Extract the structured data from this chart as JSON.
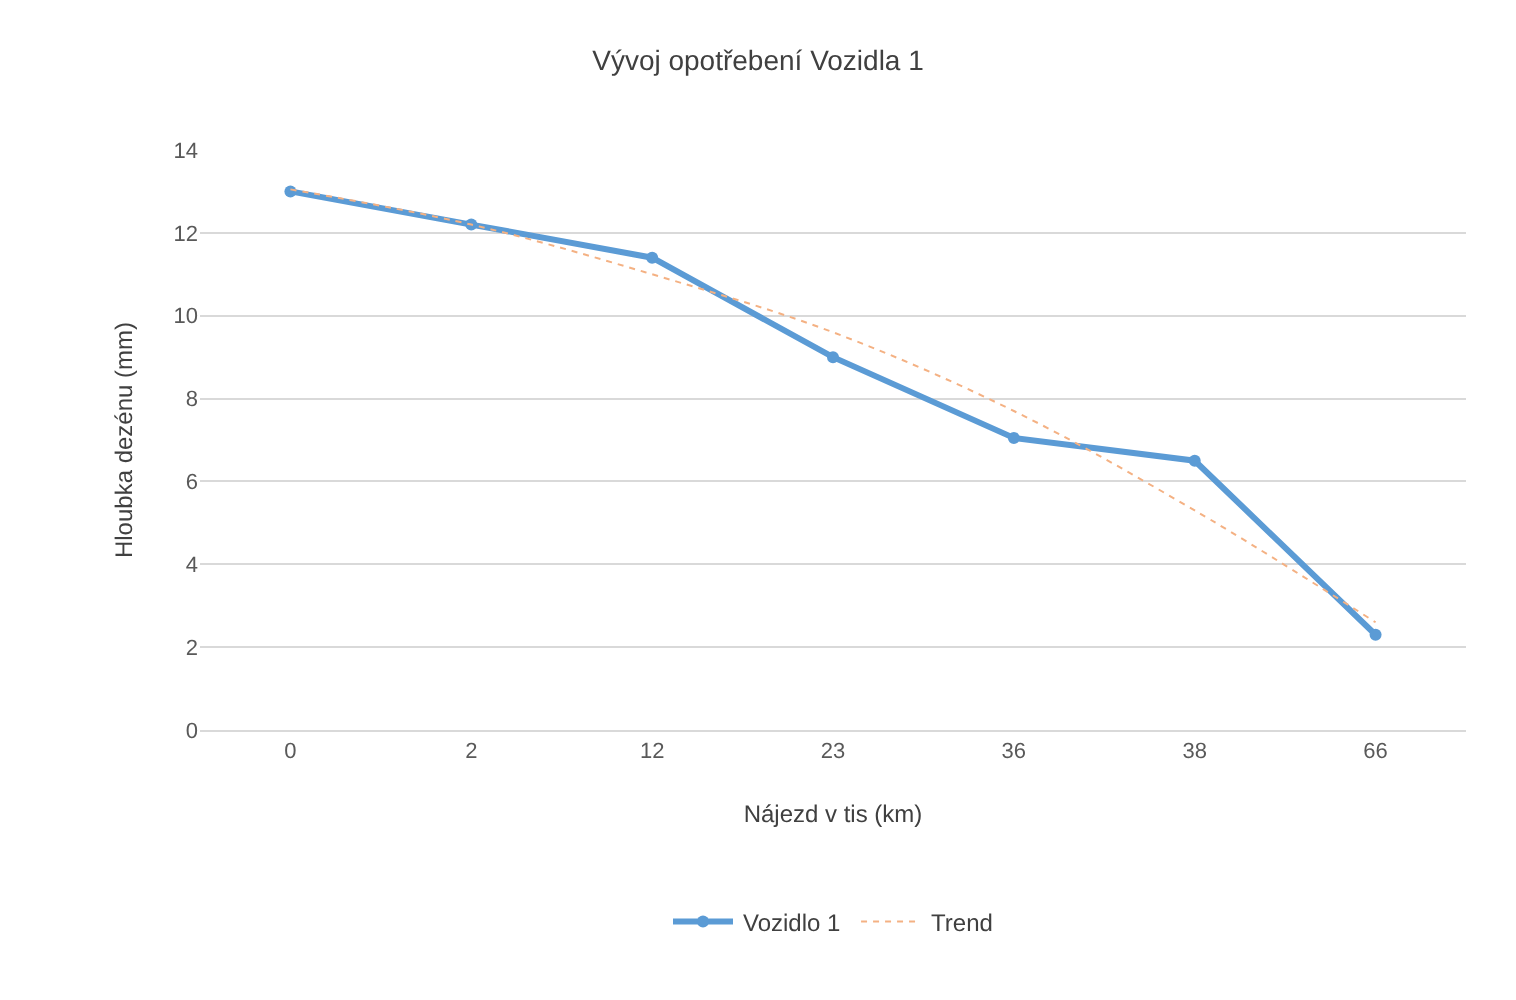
{
  "chart_data": {
    "type": "line",
    "title": "Vývoj opotřebení Vozidla 1",
    "xlabel": "Nájezd v tis (km)",
    "ylabel": "Hloubka dezénu (mm)",
    "categories": [
      "0",
      "2",
      "12",
      "23",
      "36",
      "38",
      "66"
    ],
    "series": [
      {
        "name": "Vozidlo 1",
        "color": "#5b9bd5",
        "values": [
          13.0,
          12.2,
          11.4,
          9.0,
          7.05,
          6.5,
          2.3
        ],
        "marker": "circle",
        "line_style": "solid"
      },
      {
        "name": "Trend",
        "color": "#f4b183",
        "values": [
          13.05,
          12.2,
          11.0,
          9.6,
          7.7,
          5.3,
          2.6
        ],
        "marker": "none",
        "line_style": "dotted"
      }
    ],
    "ylim": [
      0,
      14
    ],
    "yticks": [
      0,
      2,
      4,
      6,
      8,
      10,
      12,
      14
    ],
    "grid": "y",
    "legend": "bottom"
  }
}
